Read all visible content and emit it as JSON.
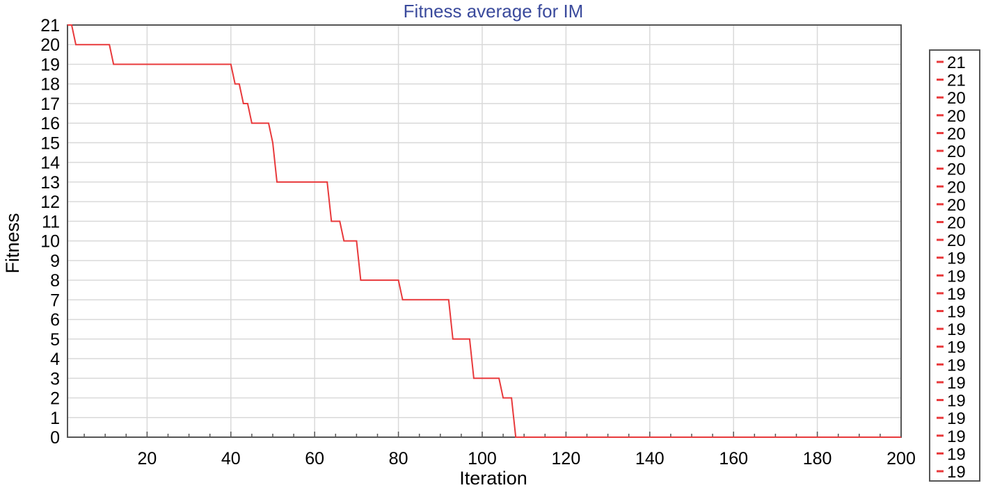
{
  "chart_data": {
    "type": "line",
    "title": "Fitness average for IM",
    "xlabel": "Iteration",
    "ylabel": "Fitness",
    "xlim": [
      1,
      200
    ],
    "ylim": [
      0,
      21
    ],
    "xticks": [
      20,
      40,
      60,
      80,
      100,
      120,
      140,
      160,
      180,
      200
    ],
    "xticks_minor_step": 5,
    "yticks": [
      0,
      1,
      2,
      3,
      4,
      5,
      6,
      7,
      8,
      9,
      10,
      11,
      12,
      13,
      14,
      15,
      16,
      17,
      18,
      19,
      20,
      21
    ],
    "grid": true,
    "legend_position": "right",
    "colors": {
      "series": "#e8393b",
      "title": "#3a4a9c",
      "grid": "#d9d9d9",
      "frame": "#555555"
    },
    "legend_entries": [
      "21",
      "21",
      "20",
      "20",
      "20",
      "20",
      "20",
      "20",
      "20",
      "20",
      "20",
      "19",
      "19",
      "19",
      "19",
      "19",
      "19",
      "19",
      "19",
      "19",
      "19",
      "19",
      "19",
      "19"
    ],
    "series": [
      {
        "x": [
          1,
          2,
          3,
          11,
          12,
          40,
          41,
          42,
          43,
          44,
          45,
          46,
          49,
          50,
          51,
          52,
          63,
          64,
          65,
          66,
          67,
          68,
          70,
          71,
          80,
          81,
          92,
          93,
          97,
          98,
          104,
          105,
          107,
          108,
          200
        ],
        "y": [
          21,
          21,
          20,
          20,
          19,
          19,
          18,
          18,
          17,
          17,
          16,
          16,
          16,
          15,
          13,
          13,
          13,
          11,
          11,
          11,
          10,
          10,
          10,
          8,
          8,
          7,
          7,
          5,
          5,
          3,
          3,
          2,
          2,
          0,
          0
        ]
      }
    ]
  }
}
